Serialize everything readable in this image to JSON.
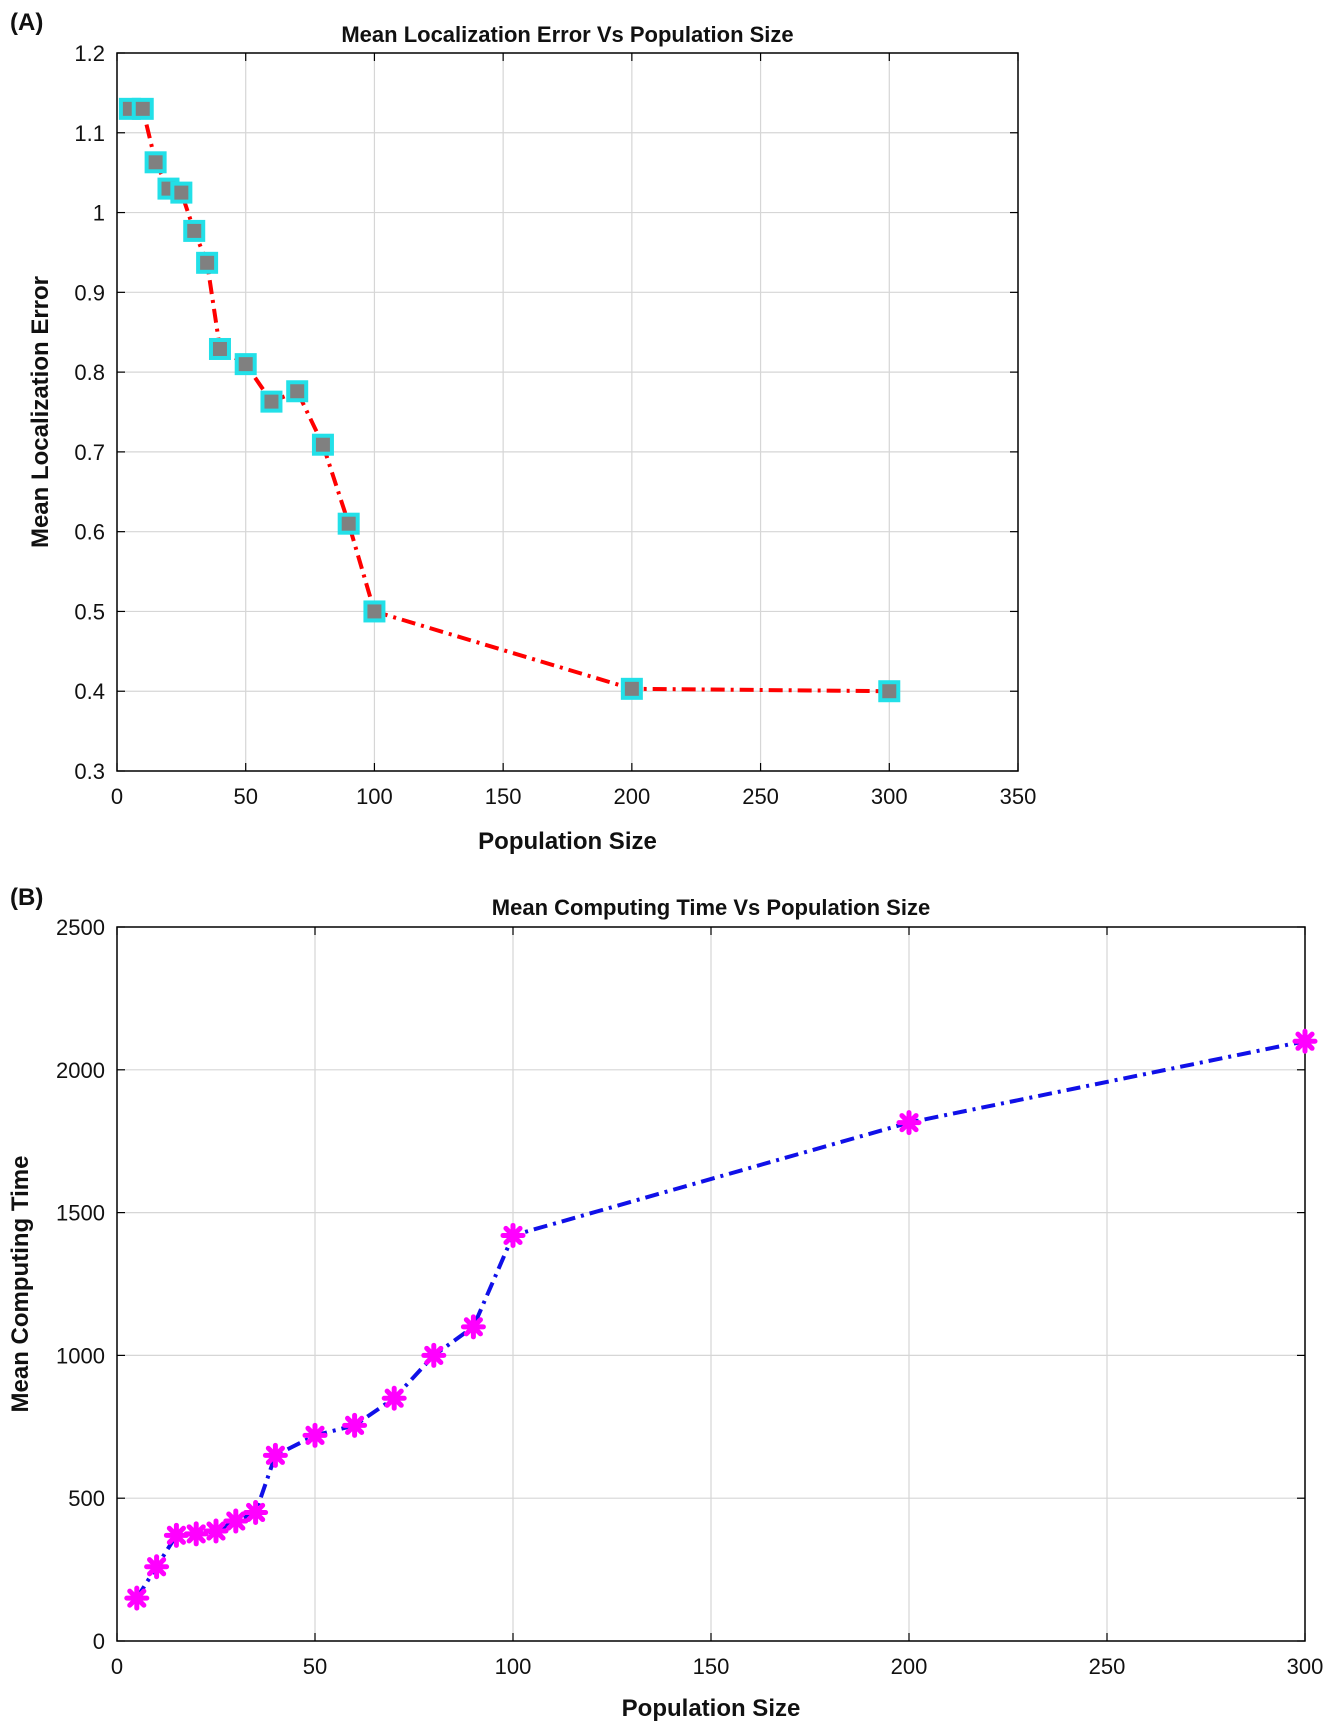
{
  "chart_data": [
    {
      "panel": "(A)",
      "type": "line",
      "title": "Mean Localization Error Vs Population Size",
      "xlabel": "Population Size",
      "ylabel": "Mean Localization Error",
      "xlim": [
        0,
        350
      ],
      "ylim": [
        0.3,
        1.2
      ],
      "xticks": [
        0,
        50,
        100,
        150,
        200,
        250,
        300,
        350
      ],
      "yticks": [
        0.3,
        0.4,
        0.5,
        0.6,
        0.7,
        0.8,
        0.9,
        1,
        1.1,
        1.2
      ],
      "grid": true,
      "line_color": "#ff0000",
      "line_style": "dash-dot",
      "marker": "square",
      "marker_edge_color": "#22e0e8",
      "marker_face_color": "#808080",
      "series": [
        {
          "x": [
            5,
            10,
            15,
            20,
            25,
            30,
            35,
            40,
            50,
            60,
            70,
            80,
            90,
            100,
            200,
            300
          ],
          "y": [
            1.13,
            1.13,
            1.063,
            1.03,
            1.025,
            0.977,
            0.937,
            0.829,
            0.81,
            0.763,
            0.776,
            0.709,
            0.61,
            0.5,
            0.403,
            0.4
          ]
        }
      ]
    },
    {
      "panel": "(B)",
      "type": "line",
      "title": "Mean Computing Time Vs Population Size",
      "xlabel": "Population Size",
      "ylabel": "Mean Computing Time",
      "xlim": [
        0,
        300
      ],
      "ylim": [
        0,
        2500
      ],
      "xticks": [
        0,
        50,
        100,
        150,
        200,
        250,
        300
      ],
      "yticks": [
        0,
        500,
        1000,
        1500,
        2000,
        2500
      ],
      "grid": true,
      "line_color": "#1010e8",
      "line_style": "dash-dot",
      "marker": "asterisk",
      "marker_color": "#ff00ff",
      "series": [
        {
          "x": [
            5,
            10,
            15,
            20,
            25,
            30,
            35,
            40,
            50,
            60,
            70,
            80,
            90,
            100,
            200,
            300
          ],
          "y": [
            150,
            260,
            370,
            375,
            385,
            420,
            450,
            650,
            720,
            755,
            850,
            1000,
            1100,
            1420,
            1815,
            2100
          ]
        }
      ]
    }
  ]
}
